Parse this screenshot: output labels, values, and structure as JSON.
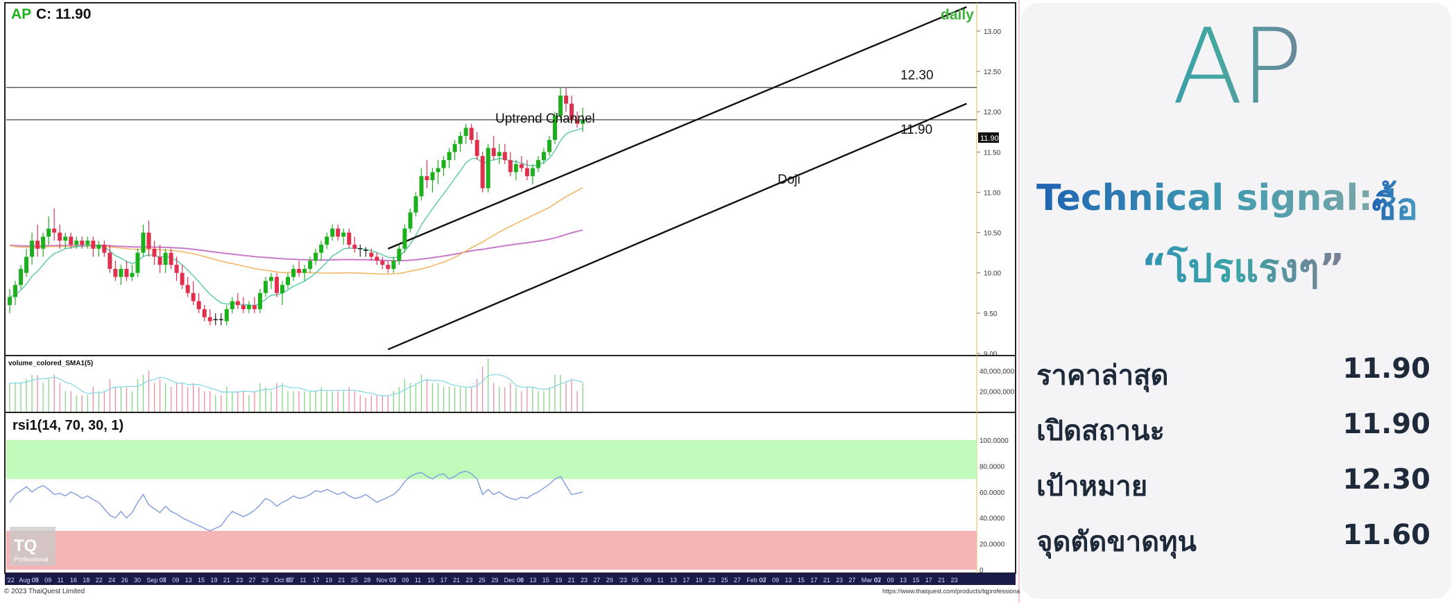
{
  "chart_header": {
    "symbol": "AP",
    "close_label": "C: 11.90",
    "timeframe": "daily"
  },
  "colors": {
    "up_candle": "#1db01d",
    "down_candle": "#e0304e",
    "doji_candle": "#222222",
    "ema_short": "#55c8a8",
    "sma_mid": "#f3b76a",
    "sma_long": "#c979c9",
    "rsi_line": "#7f9be0",
    "rsi_overbought_zone": "#c0fbb9",
    "rsi_oversold_zone": "#f5b5b5",
    "channel": "#111111"
  },
  "chart_data": {
    "type": "candlestick",
    "ylim": [
      9.0,
      13.3
    ],
    "y_ticks": [
      "13.00",
      "12.50",
      "12.00",
      "11.50",
      "11.00",
      "10.50",
      "10.00",
      "9.50",
      "9.00"
    ],
    "horizontal_lines": [
      {
        "value": 12.3,
        "label": "12.30"
      },
      {
        "value": 11.9,
        "label": "11.90"
      }
    ],
    "last_price_tag": "11.90",
    "annotations": [
      {
        "text": "Uptrend Channel"
      },
      {
        "text": "Doji"
      }
    ],
    "channel_lines": [
      {
        "from_index": 68,
        "from_value": 10.3,
        "to_index": 172,
        "to_value": 13.3
      },
      {
        "from_index": 68,
        "from_value": 9.05,
        "to_index": 172,
        "to_value": 12.1
      }
    ],
    "candles": [
      [
        9.6,
        9.8,
        9.5,
        9.7
      ],
      [
        9.7,
        9.9,
        9.6,
        9.85
      ],
      [
        9.85,
        10.1,
        9.8,
        10.05
      ],
      [
        10.0,
        10.3,
        9.95,
        10.2
      ],
      [
        10.2,
        10.5,
        10.1,
        10.4
      ],
      [
        10.4,
        10.6,
        10.2,
        10.3
      ],
      [
        10.3,
        10.5,
        10.2,
        10.45
      ],
      [
        10.45,
        10.7,
        10.35,
        10.55
      ],
      [
        10.55,
        10.8,
        10.4,
        10.5
      ],
      [
        10.5,
        10.6,
        10.3,
        10.4
      ],
      [
        10.4,
        10.5,
        10.3,
        10.45
      ],
      [
        10.45,
        10.5,
        10.3,
        10.35
      ],
      [
        10.35,
        10.45,
        10.3,
        10.4
      ],
      [
        10.4,
        10.45,
        10.3,
        10.35
      ],
      [
        10.35,
        10.45,
        10.3,
        10.4
      ],
      [
        10.4,
        10.45,
        10.2,
        10.3
      ],
      [
        10.3,
        10.4,
        10.2,
        10.35
      ],
      [
        10.35,
        10.4,
        10.2,
        10.25
      ],
      [
        10.25,
        10.35,
        10.0,
        10.05
      ],
      [
        10.05,
        10.15,
        9.9,
        9.95
      ],
      [
        9.95,
        10.1,
        9.85,
        10.05
      ],
      [
        10.05,
        10.15,
        9.9,
        9.95
      ],
      [
        9.95,
        10.1,
        9.9,
        10.0
      ],
      [
        10.0,
        10.3,
        9.95,
        10.25
      ],
      [
        10.25,
        10.6,
        10.2,
        10.5
      ],
      [
        10.5,
        10.65,
        10.2,
        10.3
      ],
      [
        10.3,
        10.4,
        10.1,
        10.2
      ],
      [
        10.2,
        10.35,
        10.0,
        10.1
      ],
      [
        10.1,
        10.3,
        10.0,
        10.25
      ],
      [
        10.25,
        10.3,
        10.05,
        10.1
      ],
      [
        10.1,
        10.2,
        9.9,
        10.0
      ],
      [
        10.0,
        10.1,
        9.8,
        9.85
      ],
      [
        9.85,
        9.95,
        9.7,
        9.75
      ],
      [
        9.75,
        9.9,
        9.6,
        9.65
      ],
      [
        9.65,
        9.75,
        9.5,
        9.55
      ],
      [
        9.55,
        9.6,
        9.4,
        9.45
      ],
      [
        9.45,
        9.55,
        9.35,
        9.4
      ],
      [
        9.4,
        9.5,
        9.35,
        9.42
      ],
      [
        9.42,
        9.5,
        9.35,
        9.4
      ],
      [
        9.4,
        9.6,
        9.35,
        9.55
      ],
      [
        9.55,
        9.7,
        9.5,
        9.65
      ],
      [
        9.65,
        9.75,
        9.55,
        9.6
      ],
      [
        9.6,
        9.7,
        9.5,
        9.55
      ],
      [
        9.55,
        9.65,
        9.5,
        9.6
      ],
      [
        9.6,
        9.7,
        9.5,
        9.55
      ],
      [
        9.55,
        9.8,
        9.5,
        9.75
      ],
      [
        9.75,
        9.95,
        9.7,
        9.9
      ],
      [
        9.9,
        10.0,
        9.8,
        9.95
      ],
      [
        9.95,
        10.0,
        9.7,
        9.75
      ],
      [
        9.75,
        9.9,
        9.6,
        9.85
      ],
      [
        9.85,
        10.0,
        9.8,
        9.95
      ],
      [
        9.95,
        10.1,
        9.9,
        10.05
      ],
      [
        10.05,
        10.15,
        9.95,
        10.0
      ],
      [
        10.0,
        10.1,
        9.9,
        10.05
      ],
      [
        10.05,
        10.2,
        10.0,
        10.15
      ],
      [
        10.15,
        10.3,
        10.1,
        10.25
      ],
      [
        10.25,
        10.4,
        10.15,
        10.35
      ],
      [
        10.35,
        10.5,
        10.3,
        10.45
      ],
      [
        10.45,
        10.6,
        10.4,
        10.55
      ],
      [
        10.55,
        10.6,
        10.4,
        10.45
      ],
      [
        10.45,
        10.55,
        10.35,
        10.5
      ],
      [
        10.5,
        10.55,
        10.3,
        10.35
      ],
      [
        10.35,
        10.45,
        10.25,
        10.3
      ],
      [
        10.3,
        10.35,
        10.2,
        10.28
      ],
      [
        10.28,
        10.32,
        10.2,
        10.25
      ],
      [
        10.25,
        10.3,
        10.15,
        10.2
      ],
      [
        10.2,
        10.25,
        10.1,
        10.15
      ],
      [
        10.15,
        10.2,
        10.05,
        10.1
      ],
      [
        10.1,
        10.15,
        10.0,
        10.05
      ],
      [
        10.05,
        10.2,
        10.0,
        10.15
      ],
      [
        10.15,
        10.35,
        10.1,
        10.3
      ],
      [
        10.3,
        10.6,
        10.25,
        10.55
      ],
      [
        10.55,
        10.8,
        10.5,
        10.75
      ],
      [
        10.75,
        11.0,
        10.7,
        10.95
      ],
      [
        10.95,
        11.3,
        10.9,
        11.2
      ],
      [
        11.2,
        11.4,
        11.05,
        11.15
      ],
      [
        11.15,
        11.3,
        11.0,
        11.25
      ],
      [
        11.25,
        11.4,
        11.1,
        11.3
      ],
      [
        11.3,
        11.45,
        11.2,
        11.4
      ],
      [
        11.4,
        11.55,
        11.3,
        11.5
      ],
      [
        11.5,
        11.65,
        11.4,
        11.6
      ],
      [
        11.6,
        11.75,
        11.5,
        11.7
      ],
      [
        11.7,
        11.85,
        11.6,
        11.8
      ],
      [
        11.8,
        11.85,
        11.6,
        11.65
      ],
      [
        11.65,
        11.75,
        11.4,
        11.45
      ],
      [
        11.45,
        11.5,
        11.0,
        11.05
      ],
      [
        11.05,
        11.6,
        11.0,
        11.55
      ],
      [
        11.55,
        11.7,
        11.4,
        11.45
      ],
      [
        11.45,
        11.6,
        11.35,
        11.5
      ],
      [
        11.5,
        11.6,
        11.35,
        11.4
      ],
      [
        11.4,
        11.5,
        11.2,
        11.25
      ],
      [
        11.25,
        11.4,
        11.15,
        11.35
      ],
      [
        11.35,
        11.45,
        11.25,
        11.3
      ],
      [
        11.3,
        11.4,
        11.15,
        11.2
      ],
      [
        11.2,
        11.35,
        11.1,
        11.3
      ],
      [
        11.3,
        11.45,
        11.25,
        11.4
      ],
      [
        11.4,
        11.55,
        11.35,
        11.5
      ],
      [
        11.5,
        11.7,
        11.45,
        11.65
      ],
      [
        11.65,
        12.0,
        11.6,
        11.95
      ],
      [
        11.95,
        12.3,
        11.9,
        12.2
      ],
      [
        12.2,
        12.3,
        12.0,
        12.1
      ],
      [
        12.1,
        12.2,
        11.85,
        11.9
      ],
      [
        11.9,
        12.0,
        11.8,
        11.85
      ],
      [
        11.85,
        12.05,
        11.75,
        11.9
      ]
    ],
    "rsi": {
      "label": "rsi1(14, 70, 30, 1)",
      "ylim": [
        0,
        100
      ],
      "overbought": 70,
      "oversold": 30,
      "y_ticks": [
        "100.0000",
        "80.0000",
        "60.0000",
        "40.0000",
        "20.0000",
        "0"
      ],
      "values": [
        52,
        58,
        61,
        64,
        60,
        63,
        65,
        62,
        58,
        59,
        57,
        60,
        58,
        55,
        57,
        54,
        52,
        47,
        42,
        40,
        45,
        40,
        44,
        52,
        58,
        50,
        47,
        44,
        49,
        45,
        43,
        40,
        38,
        36,
        34,
        32,
        30,
        32,
        34,
        40,
        45,
        43,
        41,
        43,
        46,
        50,
        55,
        53,
        49,
        52,
        54,
        57,
        55,
        56,
        58,
        61,
        60,
        62,
        60,
        58,
        60,
        57,
        55,
        56,
        58,
        55,
        52,
        54,
        56,
        58,
        62,
        68,
        72,
        74,
        75,
        72,
        70,
        73,
        74,
        70,
        72,
        75,
        76,
        74,
        70,
        58,
        62,
        58,
        60,
        57,
        55,
        54,
        56,
        55,
        58,
        60,
        63,
        66,
        70,
        72,
        65,
        58,
        59,
        60
      ]
    },
    "volume": {
      "label": "volume_colored_SMA1(5)",
      "y_ticks": [
        "40,000,000",
        "20,000,000"
      ],
      "ylim": [
        0,
        50000000
      ]
    },
    "x_tick_labels": [
      "'22",
      "Aug 03",
      "05",
      "09",
      "11",
      "16",
      "18",
      "22",
      "24",
      "26",
      "30",
      "Sep 05",
      "07",
      "09",
      "13",
      "15",
      "19",
      "21",
      "23",
      "27",
      "29",
      "Oct 05",
      "07",
      "11",
      "17",
      "19",
      "21",
      "25",
      "28",
      "Nov 03",
      "07",
      "09",
      "11",
      "15",
      "17",
      "21",
      "23",
      "25",
      "29",
      "Dec 06",
      "08",
      "13",
      "15",
      "19",
      "21",
      "23",
      "27",
      "29",
      "'23",
      "05",
      "09",
      "11",
      "13",
      "17",
      "19",
      "23",
      "25",
      "27",
      "Feb 03",
      "07",
      "09",
      "13",
      "15",
      "17",
      "21",
      "23",
      "27",
      "Mar 03",
      "07",
      "09",
      "13",
      "15",
      "17",
      "21",
      "23"
    ]
  },
  "footer": {
    "copyright": "© 2023 ThaiQuest Limited",
    "url": "https://www.thaiquest.com/products/tqprofessional/"
  },
  "watermark": {
    "brand": "TQ",
    "sub": "Professional"
  },
  "panel": {
    "logo": "AP",
    "signal_label": "Technical signal:",
    "signal_value": "ซื้อ",
    "signal_note": "“โปรแรงๆ”",
    "stats": [
      {
        "label": "ราคาล่าสุด",
        "value": "11.90"
      },
      {
        "label": "เปิดสถานะ",
        "value": "11.90"
      },
      {
        "label": "เป้าหมาย",
        "value": "12.30"
      },
      {
        "label": "จุดตัดขาดทุน",
        "value": "11.60"
      }
    ]
  }
}
